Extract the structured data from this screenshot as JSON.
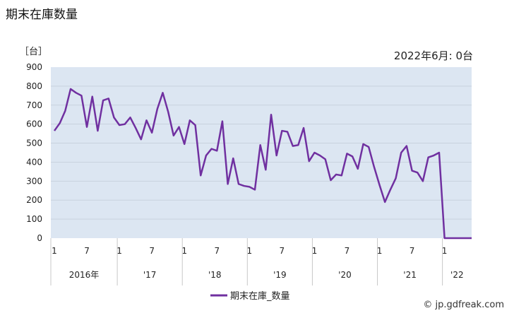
{
  "chart_data": {
    "type": "line",
    "title": "期末在庫数量",
    "unit_label": "［台］",
    "latest_note": "2022年6月: 0台",
    "source": "© jp.gdfreak.com",
    "ylim": [
      0,
      900
    ],
    "yticks": [
      0,
      100,
      200,
      300,
      400,
      500,
      600,
      700,
      800,
      900
    ],
    "grid": true,
    "legend_position": "bottom-center",
    "colors": {
      "series": "#7030A0",
      "plot_bg": "#dce6f2",
      "grid": "#c8d2de"
    },
    "x_month_ticks": [
      "1",
      "7",
      "1",
      "7",
      "1",
      "7",
      "1",
      "7",
      "1",
      "7",
      "1",
      "7",
      "1"
    ],
    "x_year_labels": [
      "2016年",
      "'17",
      "'18",
      "'19",
      "'20",
      "'21",
      "'22"
    ],
    "series": [
      {
        "name": "期末在庫_数量",
        "start": "2016-01",
        "values": [
          565,
          605,
          670,
          785,
          765,
          750,
          585,
          745,
          565,
          725,
          735,
          635,
          595,
          600,
          635,
          580,
          520,
          620,
          555,
          680,
          765,
          665,
          540,
          585,
          495,
          620,
          595,
          330,
          435,
          470,
          460,
          615,
          285,
          420,
          285,
          275,
          270,
          255,
          490,
          360,
          650,
          435,
          565,
          560,
          485,
          490,
          580,
          405,
          450,
          435,
          415,
          305,
          335,
          330,
          445,
          430,
          365,
          495,
          480,
          375,
          280,
          190,
          255,
          315,
          450,
          485,
          355,
          345,
          300,
          425,
          435,
          450,
          0,
          0,
          0,
          0,
          0,
          0
        ]
      }
    ]
  }
}
